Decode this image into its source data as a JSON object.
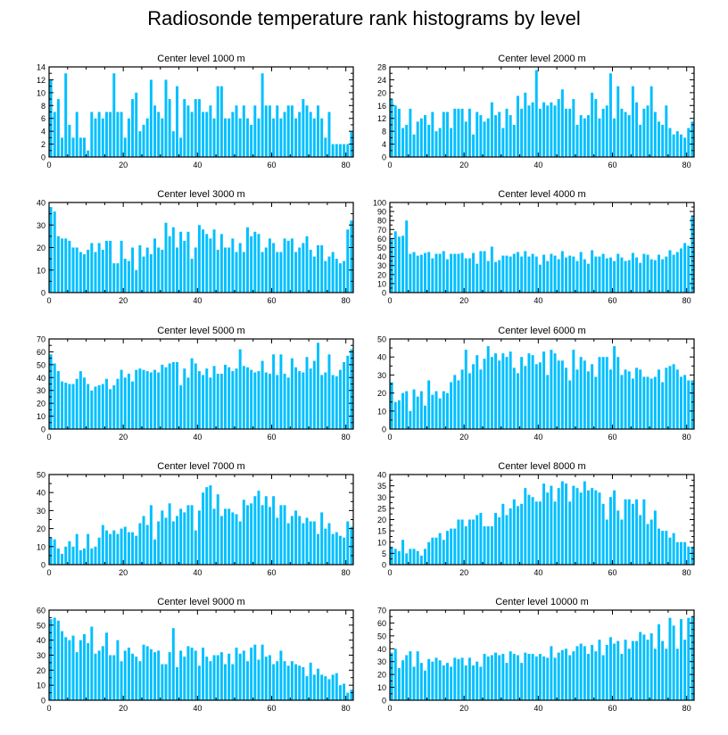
{
  "title": "Radiosonde temperature rank histograms by level",
  "colors": {
    "bar": "#00BFFF",
    "axis": "#000000"
  },
  "chart_data": [
    {
      "type": "bar",
      "title": "Center level 1000 m",
      "xlim": [
        0,
        82
      ],
      "ylim": [
        0,
        14
      ],
      "xticks": [
        0,
        20,
        40,
        60,
        80
      ],
      "yticks": [
        0,
        2,
        4,
        6,
        8,
        10,
        12,
        14
      ],
      "values": [
        12,
        7,
        9,
        3,
        13,
        5,
        3,
        7,
        3,
        3,
        1,
        7,
        6,
        7,
        6,
        7,
        7,
        13,
        7,
        7,
        3,
        6,
        9,
        10,
        4,
        5,
        6,
        12,
        8,
        7,
        6,
        12,
        9,
        4,
        11,
        3,
        9,
        8,
        7,
        9,
        9,
        7,
        7,
        8,
        6,
        11,
        11,
        6,
        6,
        7,
        8,
        6,
        8,
        6,
        5,
        8,
        6,
        13,
        8,
        8,
        6,
        8,
        6,
        7,
        8,
        8,
        6,
        7,
        9,
        8,
        7,
        6,
        8,
        6,
        3,
        7,
        2,
        2,
        2,
        2,
        2,
        4
      ]
    },
    {
      "type": "bar",
      "title": "Center level 2000 m",
      "xlim": [
        0,
        82
      ],
      "ylim": [
        0,
        28
      ],
      "xticks": [
        0,
        20,
        40,
        60,
        80
      ],
      "yticks": [
        0,
        4,
        8,
        12,
        16,
        20,
        24,
        28
      ],
      "values": [
        18,
        16,
        15,
        9,
        10,
        15,
        7,
        11,
        12,
        13,
        10,
        14,
        8,
        9,
        14,
        14,
        9,
        15,
        15,
        15,
        11,
        15,
        7,
        14,
        13,
        11,
        12,
        17,
        13,
        14,
        9,
        15,
        13,
        10,
        19,
        15,
        20,
        16,
        17,
        27,
        15,
        17,
        16,
        17,
        16,
        18,
        21,
        15,
        15,
        18,
        10,
        13,
        12,
        13,
        20,
        18,
        12,
        15,
        16,
        26,
        12,
        22,
        15,
        14,
        13,
        22,
        17,
        10,
        15,
        16,
        22,
        14,
        11,
        10,
        16,
        9,
        7,
        8,
        7,
        6,
        9,
        11
      ]
    },
    {
      "type": "bar",
      "title": "Center level 3000 m",
      "xlim": [
        0,
        82
      ],
      "ylim": [
        0,
        40
      ],
      "xticks": [
        0,
        20,
        40,
        60,
        80
      ],
      "yticks": [
        0,
        10,
        20,
        30,
        40
      ],
      "values": [
        38,
        36,
        25,
        24,
        24,
        23,
        20,
        20,
        18,
        17,
        19,
        22,
        18,
        22,
        19,
        23,
        23,
        13,
        13,
        23,
        15,
        14,
        20,
        10,
        21,
        16,
        20,
        17,
        24,
        20,
        19,
        31,
        25,
        29,
        20,
        27,
        23,
        27,
        15,
        20,
        30,
        28,
        26,
        24,
        28,
        19,
        26,
        20,
        20,
        24,
        18,
        22,
        18,
        29,
        25,
        27,
        26,
        18,
        20,
        24,
        22,
        18,
        18,
        24,
        23,
        24,
        18,
        20,
        22,
        25,
        19,
        16,
        21,
        21,
        14,
        16,
        18,
        15,
        13,
        14,
        28,
        32
      ]
    },
    {
      "type": "bar",
      "title": "Center level 4000 m",
      "xlim": [
        0,
        82
      ],
      "ylim": [
        0,
        100
      ],
      "xticks": [
        0,
        20,
        40,
        60,
        80
      ],
      "yticks": [
        0,
        10,
        20,
        30,
        40,
        50,
        60,
        70,
        80,
        90,
        100
      ],
      "values": [
        60,
        68,
        62,
        63,
        80,
        43,
        45,
        41,
        42,
        44,
        45,
        38,
        43,
        43,
        46,
        37,
        43,
        43,
        43,
        44,
        38,
        38,
        44,
        32,
        46,
        46,
        35,
        51,
        34,
        36,
        41,
        41,
        40,
        43,
        45,
        40,
        46,
        40,
        43,
        40,
        31,
        42,
        35,
        43,
        41,
        37,
        46,
        39,
        41,
        40,
        35,
        45,
        37,
        32,
        47,
        40,
        40,
        43,
        38,
        39,
        35,
        43,
        39,
        35,
        36,
        44,
        39,
        33,
        43,
        42,
        37,
        36,
        42,
        37,
        40,
        47,
        42,
        45,
        49,
        55,
        52,
        85
      ]
    },
    {
      "type": "bar",
      "title": "Center level 5000 m",
      "xlim": [
        0,
        82
      ],
      "ylim": [
        0,
        70
      ],
      "xticks": [
        0,
        20,
        40,
        60,
        80
      ],
      "yticks": [
        0,
        10,
        20,
        30,
        40,
        50,
        60,
        70
      ],
      "values": [
        58,
        51,
        45,
        37,
        36,
        35,
        35,
        39,
        45,
        40,
        35,
        30,
        33,
        34,
        35,
        39,
        31,
        34,
        39,
        46,
        40,
        43,
        37,
        46,
        47,
        46,
        45,
        44,
        46,
        44,
        50,
        48,
        51,
        52,
        52,
        34,
        47,
        40,
        55,
        51,
        45,
        42,
        47,
        40,
        49,
        43,
        43,
        50,
        48,
        45,
        47,
        62,
        49,
        48,
        46,
        44,
        45,
        53,
        44,
        43,
        58,
        42,
        58,
        43,
        40,
        55,
        48,
        45,
        44,
        56,
        47,
        53,
        67,
        42,
        44,
        58,
        42,
        41,
        46,
        52,
        57,
        62
      ]
    },
    {
      "type": "bar",
      "title": "Center level 6000 m",
      "xlim": [
        0,
        82
      ],
      "ylim": [
        0,
        50
      ],
      "xticks": [
        0,
        20,
        40,
        60,
        80
      ],
      "yticks": [
        0,
        10,
        20,
        30,
        40,
        50
      ],
      "values": [
        26,
        15,
        16,
        20,
        21,
        10,
        22,
        18,
        21,
        13,
        27,
        19,
        21,
        17,
        21,
        20,
        26,
        30,
        27,
        33,
        44,
        31,
        36,
        41,
        33,
        39,
        46,
        40,
        42,
        38,
        42,
        40,
        43,
        34,
        31,
        40,
        35,
        42,
        41,
        36,
        37,
        43,
        30,
        44,
        42,
        38,
        38,
        34,
        27,
        44,
        33,
        40,
        38,
        32,
        36,
        29,
        40,
        40,
        40,
        33,
        46,
        40,
        30,
        33,
        32,
        28,
        34,
        33,
        29,
        29,
        28,
        29,
        33,
        26,
        34,
        35,
        36,
        33,
        29,
        30,
        27,
        27
      ]
    },
    {
      "type": "bar",
      "title": "Center level 7000 m",
      "xlim": [
        0,
        82
      ],
      "ylim": [
        0,
        50
      ],
      "xticks": [
        0,
        20,
        40,
        60,
        80
      ],
      "yticks": [
        0,
        10,
        20,
        30,
        40,
        50
      ],
      "values": [
        15,
        14,
        9,
        6,
        10,
        13,
        10,
        17,
        8,
        9,
        17,
        9,
        10,
        15,
        22,
        19,
        17,
        19,
        17,
        20,
        21,
        18,
        18,
        16,
        23,
        27,
        22,
        33,
        14,
        24,
        30,
        26,
        34,
        24,
        27,
        31,
        29,
        33,
        33,
        19,
        30,
        40,
        43,
        44,
        31,
        39,
        27,
        31,
        31,
        29,
        28,
        24,
        36,
        33,
        34,
        38,
        41,
        33,
        38,
        32,
        38,
        26,
        33,
        33,
        23,
        27,
        30,
        27,
        23,
        26,
        24,
        24,
        17,
        29,
        20,
        23,
        17,
        18,
        16,
        15,
        24,
        21
      ]
    },
    {
      "type": "bar",
      "title": "Center level 8000 m",
      "xlim": [
        0,
        82
      ],
      "ylim": [
        0,
        40
      ],
      "xticks": [
        0,
        20,
        40,
        60,
        80
      ],
      "yticks": [
        0,
        5,
        10,
        15,
        20,
        25,
        30,
        35,
        40
      ],
      "values": [
        8,
        7,
        6,
        11,
        5,
        7,
        7,
        6,
        4,
        7,
        10,
        12,
        12,
        14,
        11,
        15,
        16,
        16,
        20,
        20,
        17,
        20,
        20,
        22,
        23,
        17,
        17,
        17,
        23,
        21,
        27,
        22,
        25,
        29,
        26,
        27,
        34,
        31,
        30,
        28,
        28,
        36,
        32,
        35,
        28,
        34,
        37,
        36,
        28,
        35,
        34,
        32,
        37,
        33,
        34,
        33,
        32,
        27,
        20,
        30,
        33,
        24,
        20,
        29,
        29,
        27,
        29,
        22,
        29,
        18,
        20,
        24,
        16,
        15,
        15,
        12,
        14,
        10,
        10,
        10,
        8,
        8
      ]
    },
    {
      "type": "bar",
      "title": "Center level 9000 m",
      "xlim": [
        0,
        82
      ],
      "ylim": [
        0,
        60
      ],
      "xticks": [
        0,
        20,
        40,
        60,
        80
      ],
      "yticks": [
        0,
        10,
        20,
        30,
        40,
        50,
        60
      ],
      "values": [
        54,
        55,
        53,
        46,
        42,
        40,
        43,
        32,
        40,
        44,
        38,
        49,
        31,
        33,
        36,
        45,
        30,
        30,
        40,
        26,
        33,
        35,
        31,
        29,
        26,
        37,
        36,
        34,
        32,
        33,
        24,
        24,
        32,
        48,
        22,
        33,
        29,
        36,
        35,
        33,
        23,
        35,
        29,
        26,
        30,
        30,
        32,
        24,
        31,
        24,
        35,
        31,
        33,
        26,
        35,
        37,
        27,
        37,
        29,
        30,
        24,
        26,
        33,
        26,
        23,
        26,
        24,
        23,
        22,
        16,
        25,
        17,
        21,
        17,
        16,
        14,
        17,
        18,
        10,
        11,
        5,
        7
      ]
    },
    {
      "type": "bar",
      "title": "Center level 10000 m",
      "xlim": [
        0,
        82
      ],
      "ylim": [
        0,
        70
      ],
      "xticks": [
        0,
        20,
        40,
        60,
        80
      ],
      "yticks": [
        0,
        10,
        20,
        30,
        40,
        50,
        60,
        70
      ],
      "values": [
        37,
        40,
        25,
        31,
        35,
        38,
        26,
        38,
        29,
        23,
        32,
        30,
        33,
        31,
        27,
        29,
        26,
        33,
        32,
        33,
        27,
        33,
        27,
        30,
        26,
        36,
        34,
        35,
        37,
        35,
        36,
        29,
        38,
        36,
        35,
        29,
        37,
        36,
        36,
        34,
        36,
        34,
        33,
        42,
        33,
        37,
        39,
        40,
        35,
        38,
        42,
        44,
        42,
        36,
        43,
        38,
        47,
        35,
        43,
        49,
        44,
        46,
        36,
        47,
        40,
        46,
        46,
        53,
        51,
        47,
        52,
        40,
        59,
        46,
        40,
        64,
        58,
        40,
        63,
        47,
        64,
        65
      ]
    }
  ]
}
